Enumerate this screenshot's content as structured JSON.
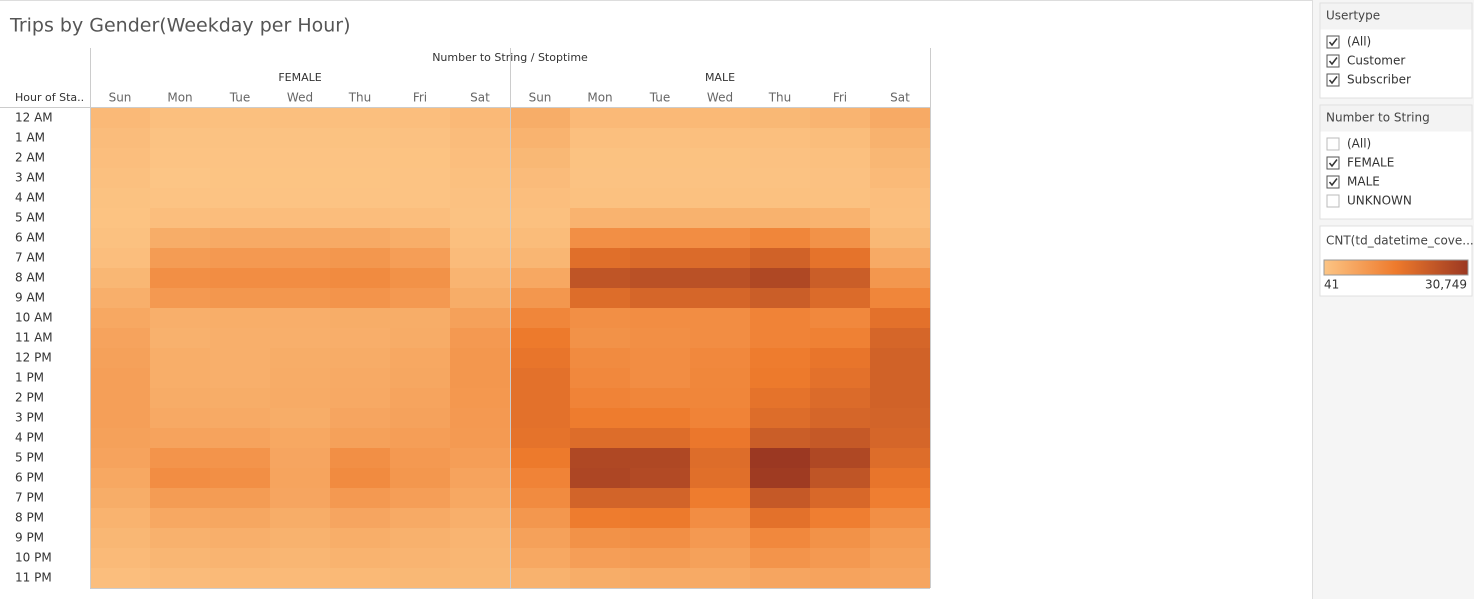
{
  "chart_data": {
    "type": "heatmap",
    "title": "Trips by Gender(Weekday per Hour)",
    "header": "Number to String / Stoptime",
    "row_header": "Hour of Sta..",
    "days": [
      "Sun",
      "Mon",
      "Tue",
      "Wed",
      "Thu",
      "Fri",
      "Sat"
    ],
    "hours": [
      "12 AM",
      "1 AM",
      "2 AM",
      "3 AM",
      "4 AM",
      "5 AM",
      "6 AM",
      "7 AM",
      "8 AM",
      "9 AM",
      "10 AM",
      "11 AM",
      "12 PM",
      "1 PM",
      "2 PM",
      "3 PM",
      "4 PM",
      "5 PM",
      "6 PM",
      "7 PM",
      "8 PM",
      "9 PM",
      "10 PM",
      "11 PM"
    ],
    "colors": [
      "#fcc585",
      "#ee7a2c",
      "#9b3822"
    ],
    "groups": [
      {
        "name": "FEMALE",
        "values": [
          [
            2500,
            1200,
            1100,
            1200,
            1300,
            1500,
            2500
          ],
          [
            1800,
            600,
            600,
            600,
            700,
            800,
            1800
          ],
          [
            1400,
            400,
            400,
            400,
            400,
            500,
            1400
          ],
          [
            1000,
            41,
            300,
            300,
            300,
            400,
            1100
          ],
          [
            700,
            400,
            400,
            400,
            400,
            400,
            800
          ],
          [
            500,
            1500,
            1600,
            1600,
            1600,
            1500,
            600
          ],
          [
            900,
            5000,
            5500,
            5500,
            5500,
            4800,
            1200
          ],
          [
            1500,
            8500,
            9000,
            9000,
            9500,
            8000,
            2000
          ],
          [
            3000,
            11000,
            11500,
            11500,
            12000,
            10500,
            3500
          ],
          [
            4500,
            9000,
            9500,
            9500,
            10000,
            9000,
            5000
          ],
          [
            6000,
            4500,
            4800,
            4700,
            5000,
            5000,
            7500
          ],
          [
            7000,
            4200,
            4500,
            4500,
            4700,
            5200,
            9000
          ],
          [
            7500,
            4800,
            4500,
            5000,
            5200,
            6000,
            9500
          ],
          [
            7800,
            4800,
            4600,
            5200,
            5500,
            6200,
            9500
          ],
          [
            7800,
            5200,
            5000,
            5400,
            5800,
            6800,
            9300
          ],
          [
            7800,
            5800,
            5500,
            5000,
            6500,
            7200,
            9000
          ],
          [
            7500,
            7000,
            7000,
            6000,
            7500,
            8000,
            8800
          ],
          [
            7000,
            10000,
            10000,
            6500,
            11000,
            9000,
            8000
          ],
          [
            6000,
            11500,
            11000,
            6800,
            12000,
            9500,
            7000
          ],
          [
            5000,
            8500,
            8500,
            6500,
            9000,
            8000,
            6000
          ],
          [
            3800,
            6000,
            6200,
            5000,
            6500,
            5500,
            4500
          ],
          [
            3000,
            4200,
            4500,
            4000,
            4800,
            4200,
            3500
          ],
          [
            2200,
            3200,
            3500,
            3200,
            3800,
            3500,
            3200
          ],
          [
            1500,
            2000,
            2200,
            2200,
            2600,
            2800,
            2800
          ]
        ]
      },
      {
        "name": "MALE",
        "values": [
          [
            5000,
            2500,
            2400,
            2600,
            2800,
            3500,
            5500
          ],
          [
            3800,
            1200,
            1100,
            1200,
            1300,
            1700,
            4000
          ],
          [
            2800,
            700,
            700,
            700,
            800,
            1000,
            3000
          ],
          [
            2000,
            600,
            600,
            600,
            600,
            800,
            2200
          ],
          [
            1400,
            900,
            900,
            900,
            900,
            900,
            1500
          ],
          [
            1100,
            3800,
            4000,
            4000,
            4000,
            3800,
            1300
          ],
          [
            1900,
            11000,
            11500,
            11500,
            13000,
            10500,
            2800
          ],
          [
            3200,
            18000,
            19000,
            19000,
            21000,
            17000,
            5500
          ],
          [
            6000,
            24000,
            25000,
            25000,
            27000,
            22000,
            9500
          ],
          [
            9500,
            18500,
            20000,
            20000,
            22000,
            19000,
            13000
          ],
          [
            13000,
            11000,
            11500,
            11500,
            13500,
            12500,
            17500
          ],
          [
            15500,
            10500,
            11000,
            11500,
            13500,
            14000,
            20000
          ],
          [
            16500,
            12000,
            11500,
            12500,
            15000,
            16500,
            21000
          ],
          [
            17500,
            12500,
            11500,
            12800,
            15500,
            17500,
            21000
          ],
          [
            17500,
            13500,
            13000,
            13000,
            17000,
            19000,
            21000
          ],
          [
            17500,
            15000,
            15000,
            13500,
            18500,
            20000,
            20500
          ],
          [
            17000,
            18500,
            18500,
            16000,
            22000,
            23000,
            20000
          ],
          [
            15500,
            27000,
            27000,
            18500,
            30749,
            27000,
            18500
          ],
          [
            13500,
            27500,
            26500,
            18000,
            30000,
            24000,
            16500
          ],
          [
            12000,
            20500,
            20500,
            15000,
            23000,
            19500,
            14500
          ],
          [
            9500,
            15000,
            15500,
            11500,
            17500,
            14500,
            11000
          ],
          [
            7500,
            10500,
            11000,
            9000,
            12500,
            10500,
            8500
          ],
          [
            6000,
            8000,
            8500,
            7500,
            10000,
            9000,
            7500
          ],
          [
            4000,
            5000,
            5500,
            5500,
            6500,
            7000,
            6500
          ]
        ]
      }
    ],
    "color_legend": {
      "title": "CNT(td_datetime_cove...",
      "min": 41,
      "max": {
        "value": 30749,
        "label": "30,749"
      }
    }
  },
  "filters": [
    {
      "title": "Usertype",
      "items": [
        {
          "label": "(All)",
          "checked": true
        },
        {
          "label": "Customer",
          "checked": true
        },
        {
          "label": "Subscriber",
          "checked": true
        }
      ]
    },
    {
      "title": "Number to String",
      "items": [
        {
          "label": "(All)",
          "checked": false
        },
        {
          "label": "FEMALE",
          "checked": true
        },
        {
          "label": "MALE",
          "checked": true
        },
        {
          "label": "UNKNOWN",
          "checked": false
        }
      ]
    }
  ]
}
